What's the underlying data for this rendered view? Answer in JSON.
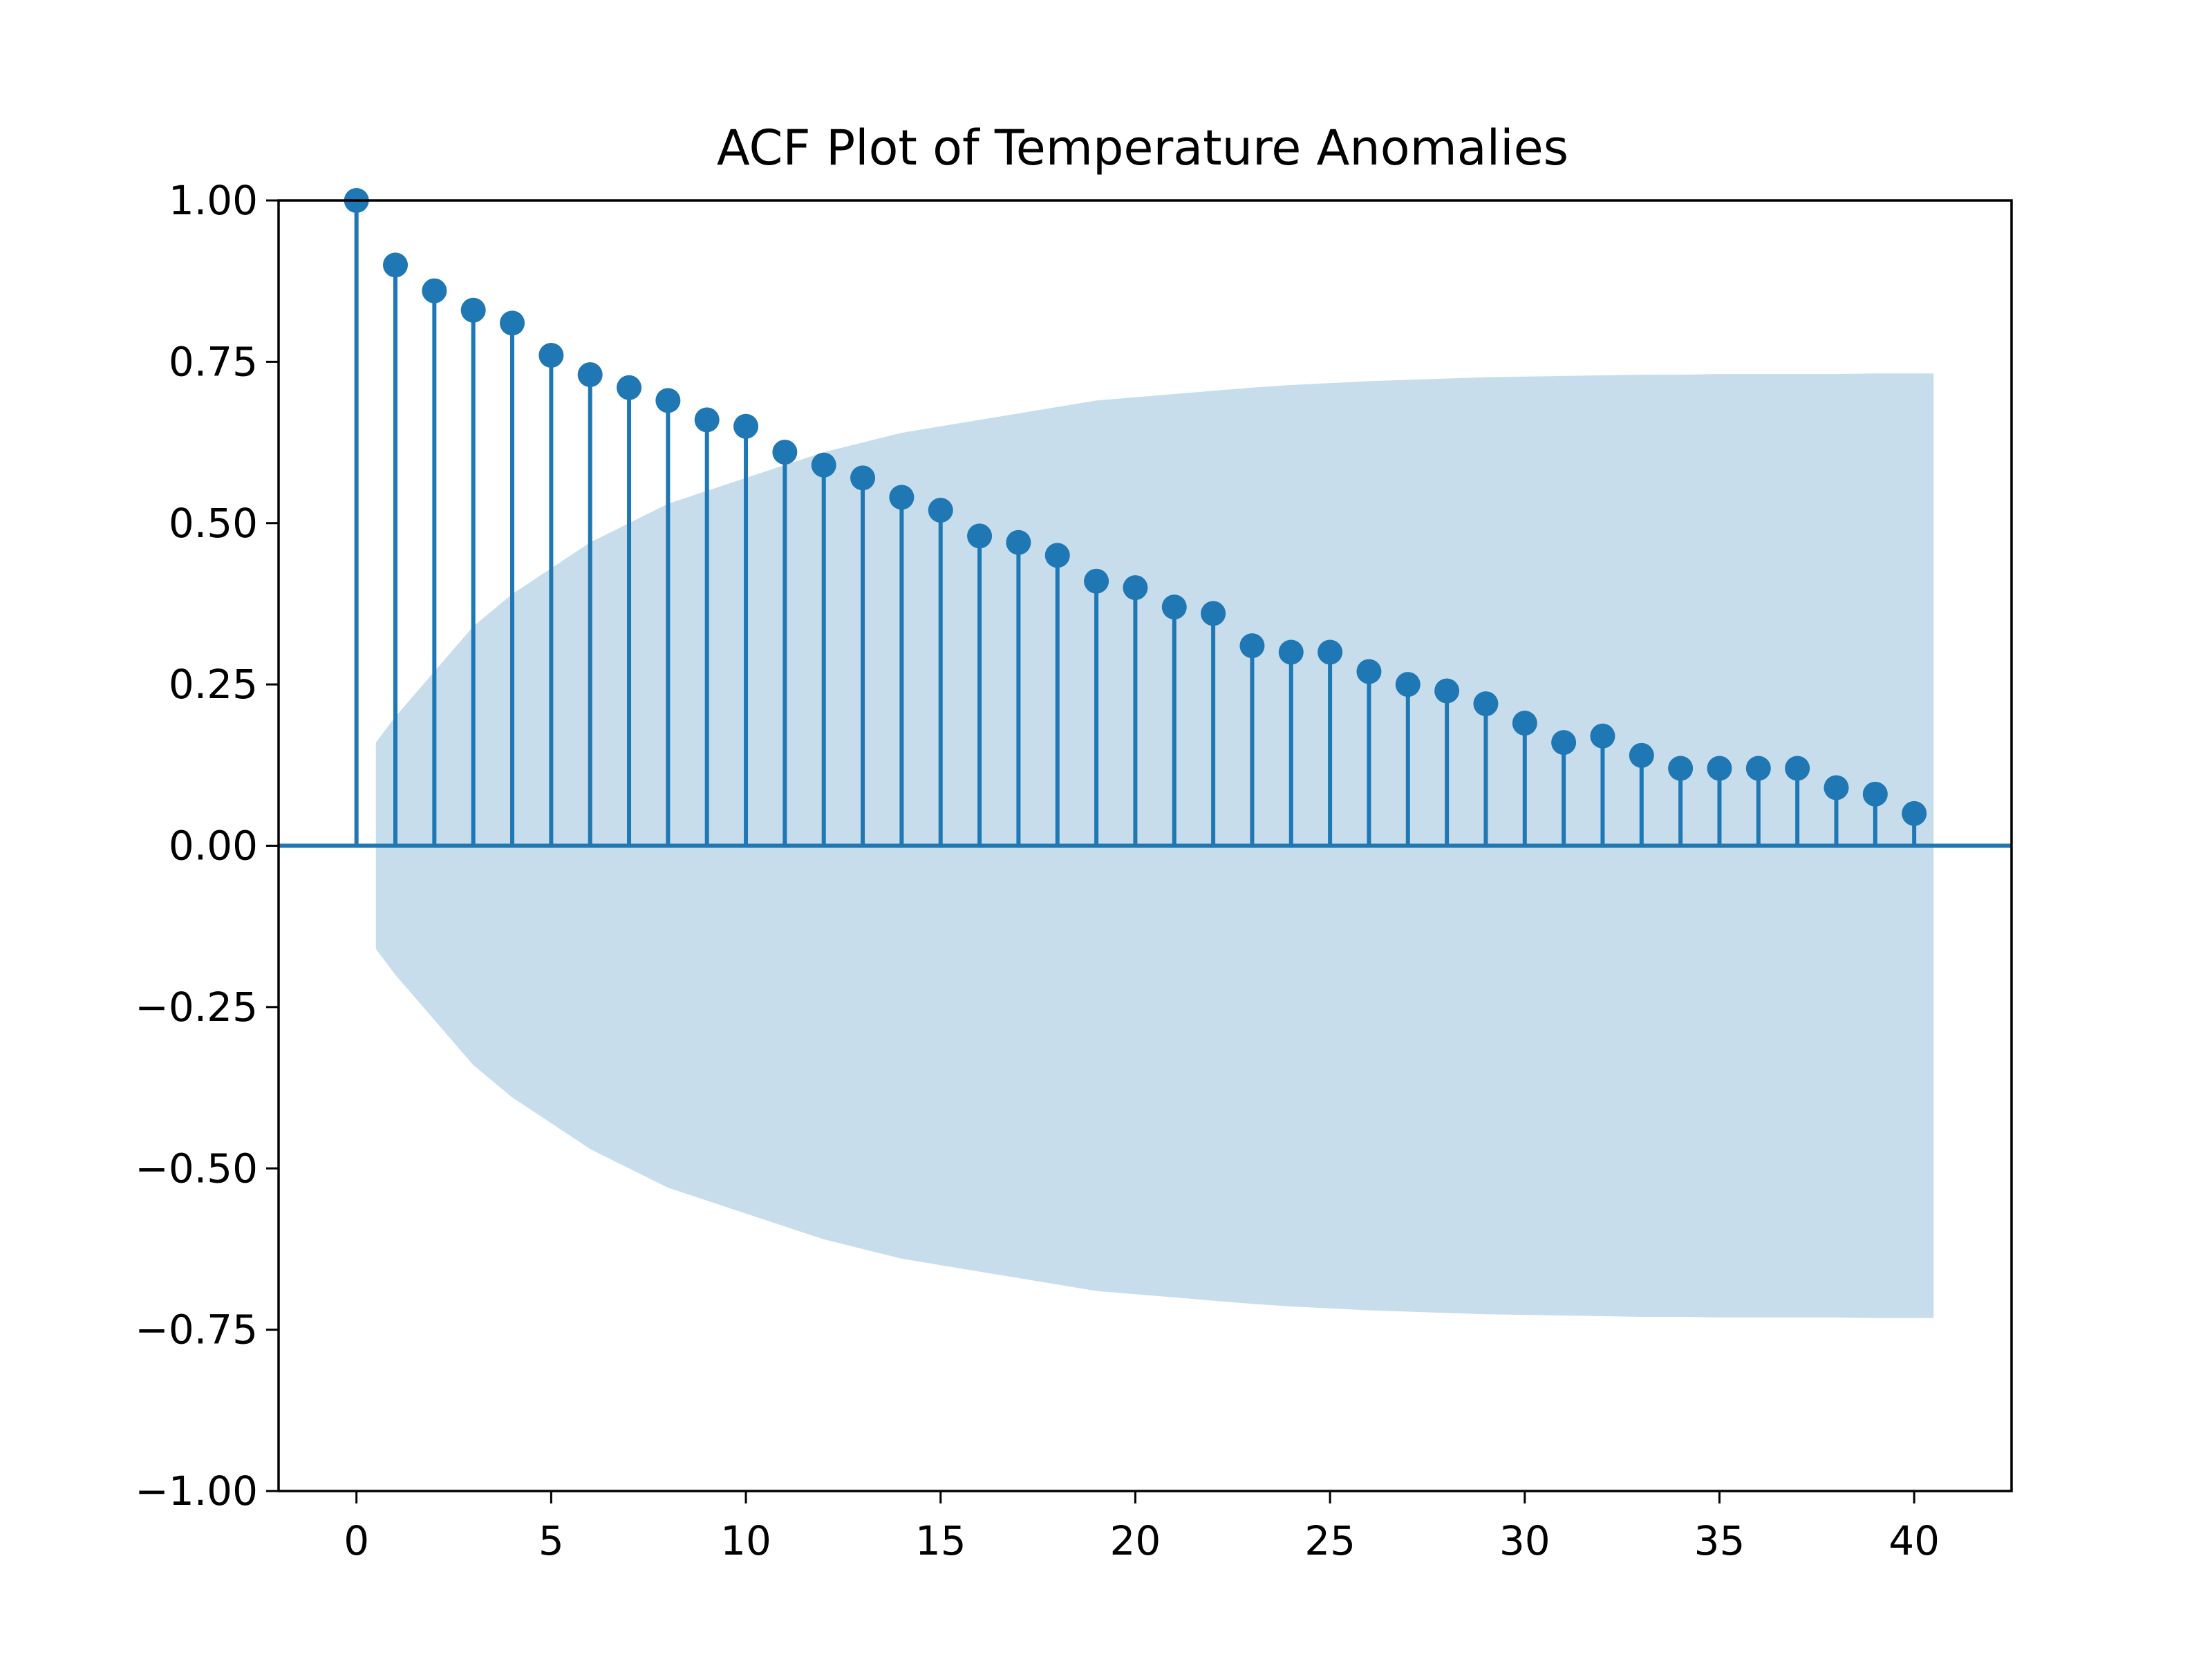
{
  "chart_data": {
    "type": "scatter",
    "subtype": "stem",
    "title": "ACF Plot of Temperature Anomalies",
    "xlabel": "",
    "ylabel": "",
    "xlim": [
      -2,
      42.5
    ],
    "ylim": [
      -1.0,
      1.0
    ],
    "x_ticks": [
      0,
      5,
      10,
      15,
      20,
      25,
      30,
      35,
      40
    ],
    "x_tick_labels": [
      "0",
      "5",
      "10",
      "15",
      "20",
      "25",
      "30",
      "35",
      "40"
    ],
    "y_ticks": [
      1.0,
      0.75,
      0.5,
      0.25,
      0.0,
      -0.25,
      -0.5,
      -0.75,
      -1.0
    ],
    "y_tick_labels": [
      "1.00",
      "0.75",
      "0.50",
      "0.25",
      "0.00",
      "−0.25",
      "−0.50",
      "−0.75",
      "−1.00"
    ],
    "grid": false,
    "legend": "none",
    "colors": {
      "stem": "#1f77b4",
      "confidence_band": "#1f77b4",
      "confidence_band_opacity": 0.25,
      "axes": "#000000",
      "background": "#ffffff"
    },
    "lags": [
      0,
      1,
      2,
      3,
      4,
      5,
      6,
      7,
      8,
      9,
      10,
      11,
      12,
      13,
      14,
      15,
      16,
      17,
      18,
      19,
      20,
      21,
      22,
      23,
      24,
      25,
      26,
      27,
      28,
      29,
      30,
      31,
      32,
      33,
      34,
      35,
      36,
      37,
      38,
      39,
      40
    ],
    "acf": [
      1.0,
      0.9,
      0.86,
      0.83,
      0.81,
      0.76,
      0.73,
      0.71,
      0.69,
      0.66,
      0.65,
      0.61,
      0.59,
      0.57,
      0.54,
      0.52,
      0.48,
      0.47,
      0.45,
      0.41,
      0.4,
      0.37,
      0.36,
      0.31,
      0.3,
      0.3,
      0.27,
      0.25,
      0.24,
      0.22,
      0.19,
      0.16,
      0.17,
      0.14,
      0.12,
      0.12,
      0.12,
      0.12,
      0.09,
      0.08,
      0.05
    ],
    "confidence_band": {
      "x": [
        0.5,
        1,
        2,
        3,
        4,
        5,
        6,
        7,
        8,
        9,
        10,
        11,
        12,
        13,
        14,
        15,
        16,
        17,
        18,
        19,
        20,
        21,
        22,
        23,
        24,
        25,
        26,
        27,
        28,
        29,
        30,
        31,
        32,
        33,
        34,
        35,
        36,
        37,
        38,
        39,
        40,
        40.5
      ],
      "upper": [
        0.16,
        0.2,
        0.27,
        0.34,
        0.39,
        0.43,
        0.47,
        0.5,
        0.53,
        0.55,
        0.57,
        0.59,
        0.61,
        0.625,
        0.64,
        0.65,
        0.66,
        0.67,
        0.68,
        0.69,
        0.695,
        0.7,
        0.705,
        0.71,
        0.714,
        0.717,
        0.72,
        0.722,
        0.724,
        0.726,
        0.727,
        0.728,
        0.729,
        0.73,
        0.73,
        0.731,
        0.731,
        0.731,
        0.731,
        0.732,
        0.732,
        0.732
      ]
    }
  }
}
